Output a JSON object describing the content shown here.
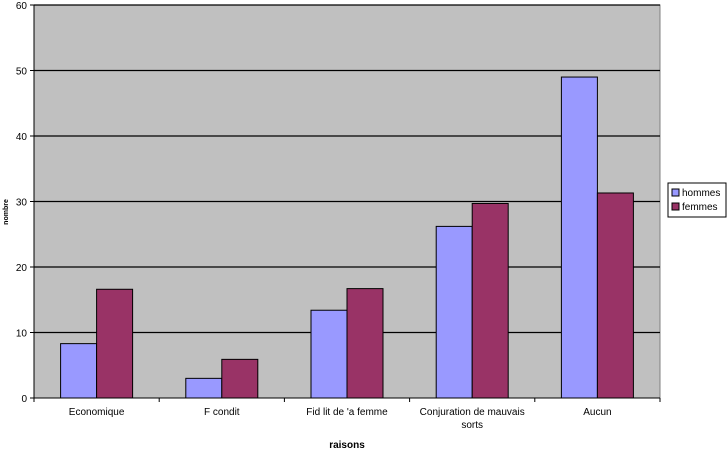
{
  "chart_data": {
    "type": "bar",
    "title": "",
    "xlabel": "raisons",
    "ylabel": "nombre",
    "ylim": [
      0,
      60
    ],
    "yticks": [
      0,
      10,
      20,
      30,
      40,
      50,
      60
    ],
    "grid": true,
    "legend_position": "right",
    "categories": [
      [
        "Economique"
      ],
      [
        "F condit"
      ],
      [
        "Fid lit de 'a femme"
      ],
      [
        "Conjuration de mauvais",
        "sorts"
      ],
      [
        "Aucun"
      ]
    ],
    "series": [
      {
        "name": "hommes",
        "color": "#9999ff",
        "values": [
          8.3,
          3.0,
          13.4,
          26.2,
          49.0
        ]
      },
      {
        "name": "femmes",
        "color": "#993366",
        "values": [
          16.6,
          5.9,
          16.7,
          29.7,
          31.3
        ]
      }
    ],
    "plot_background": "#c0c0c0"
  }
}
